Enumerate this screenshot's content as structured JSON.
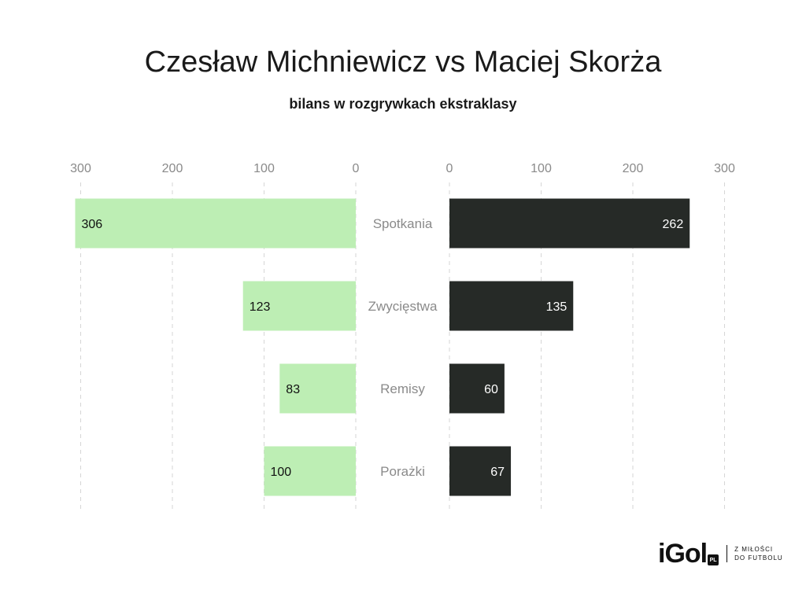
{
  "title": "Czesław Michniewicz vs Maciej Skorża",
  "subtitle": "bilans w rozgrywkach ekstraklasy",
  "chart_data": {
    "type": "bar",
    "orientation": "horizontal-butterfly",
    "title": "Czesław Michniewicz vs Maciej Skorża",
    "subtitle": "bilans w rozgrywkach ekstraklasy",
    "categories": [
      "Spotkania",
      "Zwycięstwa",
      "Remisy",
      "Porażki"
    ],
    "series": [
      {
        "side": "left",
        "values": [
          306,
          123,
          83,
          100
        ],
        "color": "#bdeeb4"
      },
      {
        "side": "right",
        "values": [
          262,
          135,
          60,
          67
        ],
        "color": "#262a27"
      }
    ],
    "xlim": [
      0,
      300
    ],
    "ticks": [
      0,
      100,
      200,
      300
    ],
    "tick_labels": [
      "0",
      "100",
      "200",
      "300"
    ],
    "grid": true
  },
  "logo": {
    "word": "iGol",
    "badge": "PL",
    "tagline_1": "Z MIŁOŚCI",
    "tagline_2": "DO FUTBOLU"
  }
}
